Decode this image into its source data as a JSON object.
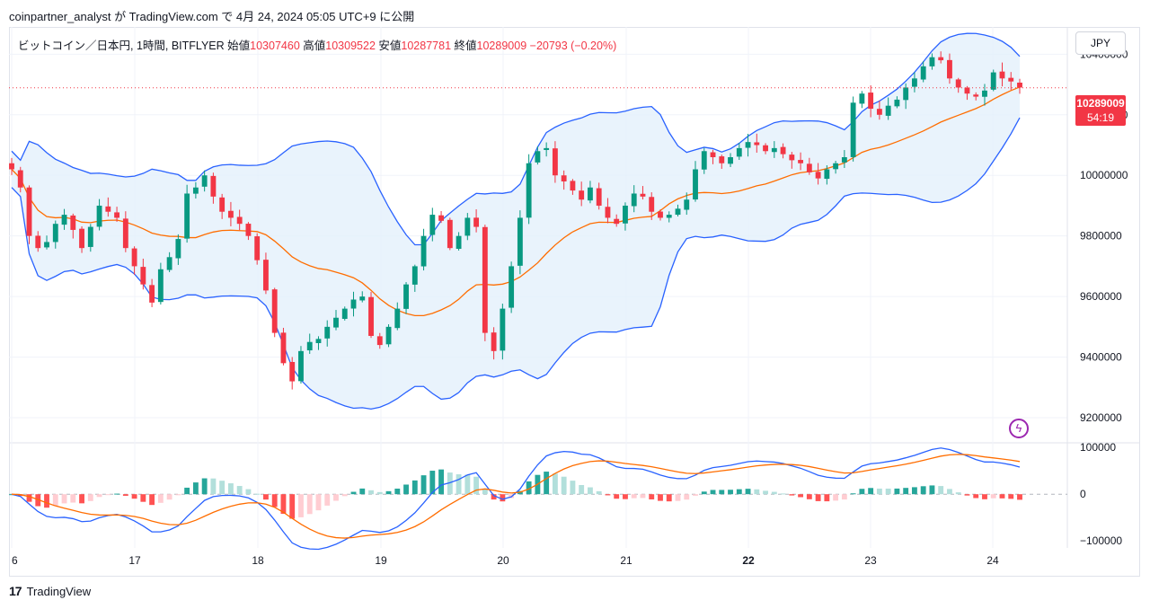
{
  "header": {
    "attribution": "coinpartner_analyst が TradingView.com で 4月 24, 2024 05:05 UTC+9 に公開"
  },
  "legend": {
    "symbol": "ビットコイン／日本円, 1時間, BITFLYER",
    "open_label": "始値",
    "open": "10307460",
    "high_label": "高値",
    "high": "10309522",
    "low_label": "安値",
    "low": "10287781",
    "close_label": "終値",
    "close": "10289009",
    "change": "−20793 (−0.20%)"
  },
  "currency": "JPY",
  "price_tag": {
    "price": "10289009",
    "countdown": "54:19"
  },
  "footer": {
    "brand": "TradingView",
    "logo": "17"
  },
  "icons": {
    "bolt": "lightning-icon"
  },
  "colors": {
    "up": "#089981",
    "down": "#f23645",
    "band": "#2962ff",
    "basis": "#ff6d00",
    "band_fill": "#e3f0fb",
    "macd": "#2962ff",
    "signal": "#ff6d00",
    "hist_up_strong": "#26a69a",
    "hist_up_weak": "#b2dfdb",
    "hist_down_strong": "#ff5252",
    "hist_down_weak": "#ffcdd2"
  },
  "chart_data": [
    {
      "type": "candlestick",
      "title": "",
      "y_axis_ticks": [
        "10400000",
        "10200000",
        "10000000",
        "9800000",
        "9600000",
        "9400000",
        "9200000"
      ],
      "ylim": [
        9120000,
        10490000
      ],
      "x_axis_ticks": [
        "6",
        "17",
        "18",
        "19",
        "20",
        "21",
        "22",
        "23",
        "24"
      ],
      "last_price": 10289009,
      "closes_hourly": [
        10020000,
        9960000,
        9800000,
        9760000,
        9780000,
        9840000,
        9870000,
        9820000,
        9760000,
        9830000,
        9900000,
        9880000,
        9860000,
        9760000,
        9700000,
        9640000,
        9580000,
        9690000,
        9730000,
        9790000,
        9940000,
        9960000,
        10000000,
        9930000,
        9880000,
        9860000,
        9840000,
        9800000,
        9720000,
        9620000,
        9480000,
        9380000,
        9320000,
        9420000,
        9450000,
        9460000,
        9500000,
        9530000,
        9560000,
        9590000,
        9600000,
        9470000,
        9440000,
        9500000,
        9560000,
        9640000,
        9700000,
        9800000,
        9870000,
        9850000,
        9760000,
        9800000,
        9860000,
        9830000,
        9480000,
        9420000,
        9560000,
        9700000,
        9860000,
        10040000,
        10080000,
        10090000,
        10000000,
        9980000,
        9950000,
        9920000,
        9960000,
        9900000,
        9860000,
        9840000,
        9900000,
        9940000,
        9930000,
        9880000,
        9860000,
        9870000,
        9890000,
        9920000,
        10020000,
        10080000,
        10060000,
        10040000,
        10060000,
        10090000,
        10110000,
        10100000,
        10080000,
        10090000,
        10070000,
        10050000,
        10040000,
        10010000,
        9990000,
        10020000,
        10040000,
        10060000,
        10240000,
        10270000,
        10220000,
        10200000,
        10230000,
        10250000,
        10290000,
        10320000,
        10360000,
        10390000,
        10380000,
        10320000,
        10290000,
        10270000,
        10260000,
        10280000,
        10340000,
        10320000,
        10310000,
        10290000
      ]
    },
    {
      "type": "macd",
      "y_axis_ticks": [
        "100000",
        "0",
        "−100000"
      ],
      "ylim": [
        -115000,
        110000
      ]
    }
  ]
}
